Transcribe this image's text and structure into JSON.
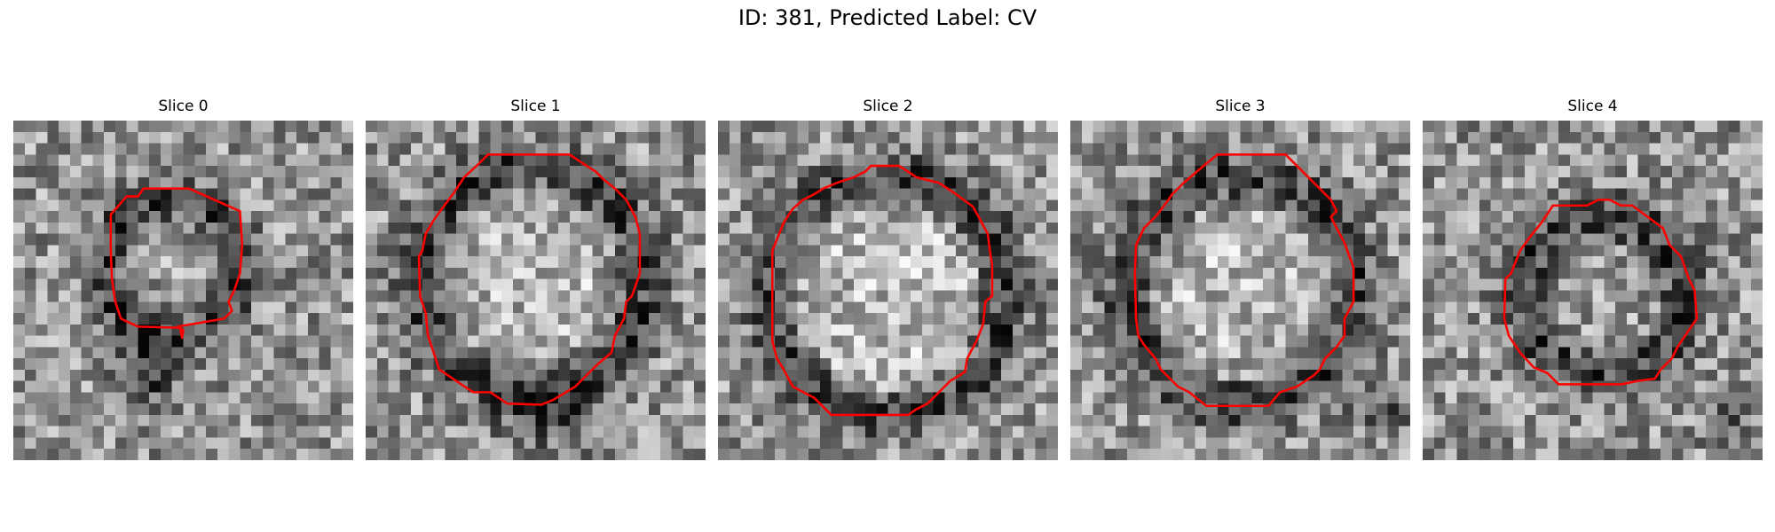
{
  "figure": {
    "title": "ID: 381, Predicted Label: CV"
  },
  "colors": {
    "contour": "#ff0000",
    "background": "#ffffff"
  },
  "image": {
    "grid_size": 30,
    "colormap": "gray"
  },
  "panels": [
    {
      "title": "Slice 0",
      "texture": {
        "seed": 11,
        "ring": {
          "cx": 14,
          "cy": 13,
          "r": 6,
          "width": 2
        },
        "extra_dark": [
          {
            "cx": 12,
            "cy": 22,
            "r": 3,
            "depth": 0.35
          }
        ],
        "center_light": 0.04
      },
      "contour": [
        [
          11.5,
          6
        ],
        [
          15.5,
          6
        ],
        [
          20,
          8
        ],
        [
          20.2,
          11
        ],
        [
          20,
          13.5
        ],
        [
          19.5,
          15
        ],
        [
          19,
          16
        ],
        [
          19.3,
          16.8
        ],
        [
          18.6,
          17.5
        ],
        [
          14.5,
          18.2
        ],
        [
          15,
          18.5
        ],
        [
          14.9,
          19.2
        ],
        [
          14.7,
          18.3
        ],
        [
          11,
          18.2
        ],
        [
          9.5,
          17.5
        ],
        [
          9,
          16
        ],
        [
          8.7,
          14
        ],
        [
          8.6,
          11.5
        ],
        [
          8.6,
          8.3
        ],
        [
          10,
          6.7
        ],
        [
          11,
          6.7
        ]
      ]
    },
    {
      "title": "Slice 1",
      "texture": {
        "seed": 23,
        "ring": {
          "cx": 14.5,
          "cy": 14,
          "r": 10,
          "width": 2.2
        },
        "extra_dark": [
          {
            "cx": 16,
            "cy": 26,
            "r": 4,
            "depth": 0.22
          }
        ],
        "center_light": 0.12
      },
      "contour": [
        [
          10,
          3.8
        ],
        [
          10.8,
          3
        ],
        [
          18,
          3
        ],
        [
          19.5,
          4
        ],
        [
          20.3,
          4.5
        ],
        [
          21,
          5.2
        ],
        [
          22,
          6
        ],
        [
          23,
          7
        ],
        [
          23.8,
          8.5
        ],
        [
          24.2,
          10
        ],
        [
          24.2,
          13.5
        ],
        [
          23.5,
          15.5
        ],
        [
          23,
          16
        ],
        [
          22.8,
          17.5
        ],
        [
          22,
          19
        ],
        [
          21.7,
          20.5
        ],
        [
          20.5,
          21.5
        ],
        [
          18.5,
          23.5
        ],
        [
          16.5,
          24.7
        ],
        [
          15.5,
          25.1
        ],
        [
          12.5,
          25
        ],
        [
          11,
          24
        ],
        [
          9.5,
          24
        ],
        [
          8,
          23
        ],
        [
          6.5,
          22
        ],
        [
          6,
          20.5
        ],
        [
          5.5,
          19
        ],
        [
          5.3,
          17
        ],
        [
          4.8,
          15.5
        ],
        [
          4.7,
          12
        ],
        [
          5,
          11.5
        ],
        [
          5.3,
          10
        ],
        [
          6,
          8.8
        ],
        [
          6.8,
          7.7
        ],
        [
          7.7,
          6.5
        ],
        [
          8.7,
          5
        ]
      ]
    },
    {
      "title": "Slice 2",
      "texture": {
        "seed": 37,
        "ring": {
          "cx": 15,
          "cy": 15.5,
          "r": 10.5,
          "width": 2.2
        },
        "extra_dark": [],
        "center_light": 0.14
      },
      "contour": [
        [
          12,
          5
        ],
        [
          13,
          4.5
        ],
        [
          13.5,
          4
        ],
        [
          16,
          4
        ],
        [
          17.5,
          5
        ],
        [
          19.5,
          5.5
        ],
        [
          21,
          6.5
        ],
        [
          22.5,
          7.6
        ],
        [
          23,
          8.5
        ],
        [
          23.8,
          10
        ],
        [
          24,
          11.5
        ],
        [
          24.2,
          12.8
        ],
        [
          24.2,
          15.5
        ],
        [
          23.6,
          16
        ],
        [
          23.4,
          18
        ],
        [
          22.8,
          19.5
        ],
        [
          22,
          21
        ],
        [
          21.8,
          22.2
        ],
        [
          20.5,
          23
        ],
        [
          19.5,
          24
        ],
        [
          18.5,
          25
        ],
        [
          17.5,
          25.5
        ],
        [
          16.8,
          26
        ],
        [
          10,
          26
        ],
        [
          9.5,
          25.5
        ],
        [
          8.5,
          24.5
        ],
        [
          6.6,
          23.5
        ],
        [
          5.8,
          22
        ],
        [
          5.2,
          21
        ],
        [
          4.8,
          19.5
        ],
        [
          4.8,
          11.5
        ],
        [
          5.2,
          10.5
        ],
        [
          5.8,
          9
        ],
        [
          6.6,
          7.8
        ],
        [
          7.5,
          7
        ],
        [
          8.5,
          6.5
        ],
        [
          9.3,
          6
        ],
        [
          10.5,
          5.5
        ]
      ]
    },
    {
      "title": "Slice 3",
      "texture": {
        "seed": 51,
        "ring": {
          "cx": 15,
          "cy": 15,
          "r": 10,
          "width": 2.3
        },
        "extra_dark": [
          {
            "cx": 28,
            "cy": 25,
            "r": 3,
            "depth": 0.2
          }
        ],
        "center_light": 0.12
      },
      "contour": [
        [
          12,
          3.8
        ],
        [
          13,
          3
        ],
        [
          19,
          3
        ],
        [
          20,
          4
        ],
        [
          21,
          5
        ],
        [
          22,
          6
        ],
        [
          23,
          7
        ],
        [
          23.5,
          8
        ],
        [
          23,
          8.5
        ],
        [
          23.5,
          9.5
        ],
        [
          24.2,
          10.8
        ],
        [
          25,
          13
        ],
        [
          25,
          16
        ],
        [
          24.2,
          17.5
        ],
        [
          24.2,
          19
        ],
        [
          23.5,
          20
        ],
        [
          22.5,
          21
        ],
        [
          22,
          22
        ],
        [
          21.5,
          22.5
        ],
        [
          20,
          23.5
        ],
        [
          18.5,
          24
        ],
        [
          17.5,
          25.2
        ],
        [
          12,
          25.2
        ],
        [
          10.5,
          24
        ],
        [
          9.5,
          23.5
        ],
        [
          8,
          22
        ],
        [
          7.5,
          21
        ],
        [
          6.5,
          19.8
        ],
        [
          6,
          19
        ],
        [
          5.8,
          17.5
        ],
        [
          5.7,
          13.5
        ],
        [
          5.8,
          11
        ],
        [
          6.5,
          9.5
        ],
        [
          7.5,
          8.5
        ],
        [
          8.3,
          7.5
        ],
        [
          9,
          6.5
        ],
        [
          10,
          5.5
        ]
      ]
    },
    {
      "title": "Slice 4",
      "texture": {
        "seed": 67,
        "ring": {
          "cx": 16,
          "cy": 15.5,
          "r": 7,
          "width": 2.2
        },
        "extra_dark": [
          {
            "cx": 27,
            "cy": 26,
            "r": 2.5,
            "depth": 0.25
          }
        ],
        "center_light": 0.05
      },
      "contour": [
        [
          11.5,
          7.5
        ],
        [
          12.5,
          7.5
        ],
        [
          14.5,
          7.5
        ],
        [
          15.5,
          7
        ],
        [
          16.5,
          7
        ],
        [
          17.5,
          7.5
        ],
        [
          18.5,
          7.5
        ],
        [
          21.2,
          9.5
        ],
        [
          21.8,
          11
        ],
        [
          22.8,
          12
        ],
        [
          23.5,
          14
        ],
        [
          24,
          15
        ],
        [
          24.2,
          17.5
        ],
        [
          23.5,
          18.5
        ],
        [
          22.5,
          20
        ],
        [
          22,
          21
        ],
        [
          21,
          22
        ],
        [
          20.5,
          22.8
        ],
        [
          19,
          23
        ],
        [
          17.5,
          23.3
        ],
        [
          12,
          23.3
        ],
        [
          11,
          22.3
        ],
        [
          9.8,
          21.8
        ],
        [
          8.6,
          20.5
        ],
        [
          7.6,
          19
        ],
        [
          7.2,
          17.5
        ],
        [
          7.3,
          14
        ],
        [
          7.8,
          13.5
        ],
        [
          8.6,
          11.5
        ],
        [
          9.3,
          10.5
        ],
        [
          10.5,
          9
        ]
      ]
    }
  ]
}
